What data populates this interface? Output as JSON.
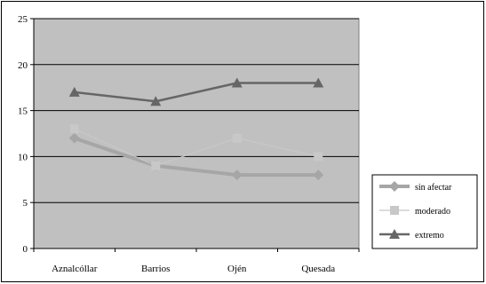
{
  "chart_data": {
    "type": "line",
    "categories": [
      "Aznalcóllar",
      "Barrios",
      "Ojén",
      "Quesada"
    ],
    "ylim": [
      0,
      25
    ],
    "yticks": [
      0,
      5,
      10,
      15,
      20,
      25
    ],
    "grid": true,
    "legend_position": "right",
    "plot_background": "#c0c0c0",
    "series": [
      {
        "name": "sin afectar",
        "values": [
          12,
          9,
          8,
          8
        ],
        "color": "#a6a6a6",
        "marker": "diamond",
        "line_weight": "thick"
      },
      {
        "name": "moderado",
        "values": [
          13,
          9,
          12,
          10
        ],
        "color": "#c8c8c8",
        "marker": "square",
        "line_weight": "thin"
      },
      {
        "name": "extremo",
        "values": [
          17,
          16,
          18,
          18
        ],
        "color": "#666666",
        "marker": "triangle",
        "line_weight": "medium"
      }
    ]
  }
}
